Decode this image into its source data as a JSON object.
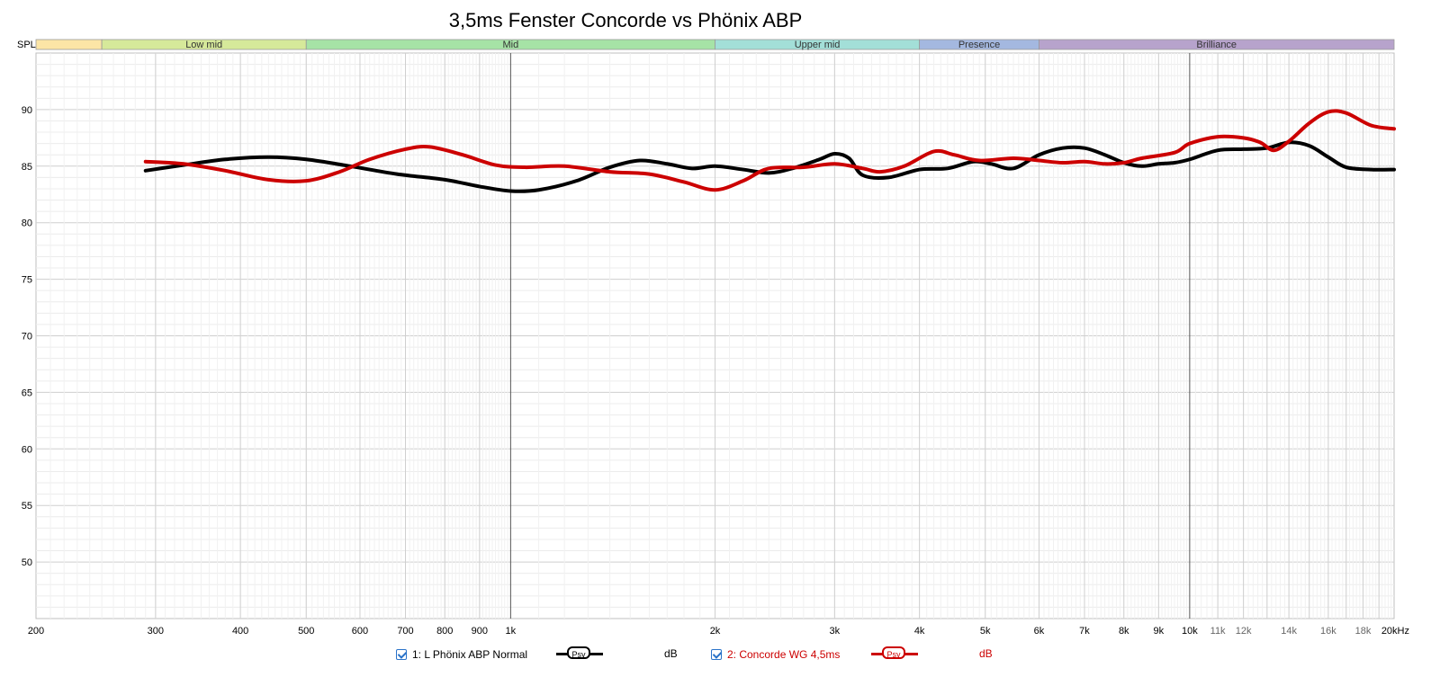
{
  "chart_data": {
    "type": "line",
    "title": "3,5ms Fenster Concorde vs Phönix ABP",
    "ylabel": "SPL",
    "x_scale": "log",
    "xlim": [
      200,
      20000
    ],
    "ylim": [
      45,
      95
    ],
    "y_ticks": [
      50,
      55,
      60,
      65,
      70,
      75,
      80,
      85,
      90
    ],
    "x_tick_labels": [
      {
        "v": 200,
        "t": "200"
      },
      {
        "v": 300,
        "t": "300"
      },
      {
        "v": 400,
        "t": "400"
      },
      {
        "v": 500,
        "t": "500"
      },
      {
        "v": 600,
        "t": "600"
      },
      {
        "v": 700,
        "t": "700"
      },
      {
        "v": 800,
        "t": "800"
      },
      {
        "v": 900,
        "t": "900"
      },
      {
        "v": 1000,
        "t": "1k"
      },
      {
        "v": 2000,
        "t": "2k"
      },
      {
        "v": 3000,
        "t": "3k"
      },
      {
        "v": 4000,
        "t": "4k"
      },
      {
        "v": 5000,
        "t": "5k"
      },
      {
        "v": 6000,
        "t": "6k"
      },
      {
        "v": 7000,
        "t": "7k"
      },
      {
        "v": 8000,
        "t": "8k"
      },
      {
        "v": 9000,
        "t": "9k"
      },
      {
        "v": 10000,
        "t": "10k"
      },
      {
        "v": 11000,
        "t": "11k"
      },
      {
        "v": 12000,
        "t": "12k"
      },
      {
        "v": 14000,
        "t": "14k"
      },
      {
        "v": 16000,
        "t": "16k"
      },
      {
        "v": 18000,
        "t": "18k"
      },
      {
        "v": 20000,
        "t": "20kHz"
      }
    ],
    "bands": [
      {
        "name": "",
        "from": 200,
        "to": 250,
        "color": "#fce5a6"
      },
      {
        "name": "Low mid",
        "from": 250,
        "to": 500,
        "color": "#d6e99a"
      },
      {
        "name": "Mid",
        "from": 500,
        "to": 2000,
        "color": "#a6e3a6"
      },
      {
        "name": "Upper mid",
        "from": 2000,
        "to": 4000,
        "color": "#a3dfd8"
      },
      {
        "name": "Presence",
        "from": 4000,
        "to": 6000,
        "color": "#a4b8e0"
      },
      {
        "name": "Brilliance",
        "from": 6000,
        "to": 20000,
        "color": "#b7a3cc"
      }
    ],
    "series": [
      {
        "name": "1: L Phönix ABP Normal",
        "color": "#000000",
        "points": [
          [
            290,
            84.6
          ],
          [
            330,
            85.1
          ],
          [
            380,
            85.6
          ],
          [
            440,
            85.8
          ],
          [
            500,
            85.6
          ],
          [
            580,
            85.0
          ],
          [
            680,
            84.3
          ],
          [
            800,
            83.8
          ],
          [
            900,
            83.2
          ],
          [
            1000,
            82.8
          ],
          [
            1100,
            82.9
          ],
          [
            1250,
            83.7
          ],
          [
            1400,
            84.9
          ],
          [
            1550,
            85.5
          ],
          [
            1700,
            85.2
          ],
          [
            1850,
            84.8
          ],
          [
            2000,
            85.0
          ],
          [
            2200,
            84.7
          ],
          [
            2400,
            84.4
          ],
          [
            2600,
            84.8
          ],
          [
            2850,
            85.6
          ],
          [
            3000,
            86.1
          ],
          [
            3150,
            85.7
          ],
          [
            3300,
            84.2
          ],
          [
            3600,
            84.0
          ],
          [
            4000,
            84.7
          ],
          [
            4400,
            84.8
          ],
          [
            4800,
            85.4
          ],
          [
            5100,
            85.2
          ],
          [
            5500,
            84.8
          ],
          [
            6000,
            86.0
          ],
          [
            6500,
            86.6
          ],
          [
            7000,
            86.6
          ],
          [
            7500,
            86.0
          ],
          [
            8000,
            85.3
          ],
          [
            8500,
            85.0
          ],
          [
            9000,
            85.2
          ],
          [
            9500,
            85.3
          ],
          [
            10000,
            85.6
          ],
          [
            11000,
            86.4
          ],
          [
            12000,
            86.5
          ],
          [
            13000,
            86.6
          ],
          [
            14000,
            87.1
          ],
          [
            15000,
            86.8
          ],
          [
            16000,
            85.8
          ],
          [
            17000,
            84.9
          ],
          [
            18500,
            84.7
          ],
          [
            20000,
            84.7
          ]
        ]
      },
      {
        "name": "2: Concorde WG 4,5ms",
        "color": "#cc0000",
        "points": [
          [
            290,
            85.4
          ],
          [
            330,
            85.2
          ],
          [
            380,
            84.6
          ],
          [
            440,
            83.8
          ],
          [
            500,
            83.7
          ],
          [
            560,
            84.5
          ],
          [
            620,
            85.6
          ],
          [
            700,
            86.5
          ],
          [
            760,
            86.7
          ],
          [
            850,
            86.0
          ],
          [
            950,
            85.1
          ],
          [
            1050,
            84.9
          ],
          [
            1200,
            85.0
          ],
          [
            1400,
            84.5
          ],
          [
            1600,
            84.3
          ],
          [
            1800,
            83.6
          ],
          [
            2000,
            82.9
          ],
          [
            2200,
            83.7
          ],
          [
            2400,
            84.8
          ],
          [
            2700,
            84.9
          ],
          [
            3000,
            85.2
          ],
          [
            3300,
            84.8
          ],
          [
            3500,
            84.5
          ],
          [
            3800,
            85.0
          ],
          [
            4200,
            86.3
          ],
          [
            4500,
            86.0
          ],
          [
            4900,
            85.5
          ],
          [
            5500,
            85.7
          ],
          [
            6000,
            85.5
          ],
          [
            6500,
            85.3
          ],
          [
            7000,
            85.4
          ],
          [
            7500,
            85.2
          ],
          [
            8000,
            85.3
          ],
          [
            8500,
            85.7
          ],
          [
            9500,
            86.2
          ],
          [
            10000,
            87.0
          ],
          [
            11000,
            87.6
          ],
          [
            12000,
            87.5
          ],
          [
            12700,
            87.1
          ],
          [
            13300,
            86.4
          ],
          [
            14000,
            87.2
          ],
          [
            15000,
            88.8
          ],
          [
            16000,
            89.8
          ],
          [
            17000,
            89.7
          ],
          [
            18500,
            88.6
          ],
          [
            20000,
            88.3
          ]
        ]
      }
    ]
  },
  "legend": {
    "item1": {
      "label": "1: L Phönix ABP Normal",
      "psy": "Psy",
      "unit": "dB",
      "color": "#000000"
    },
    "item2": {
      "label": "2: Concorde WG 4,5ms",
      "psy": "Psy",
      "unit": "dB",
      "color": "#cc0000"
    }
  }
}
